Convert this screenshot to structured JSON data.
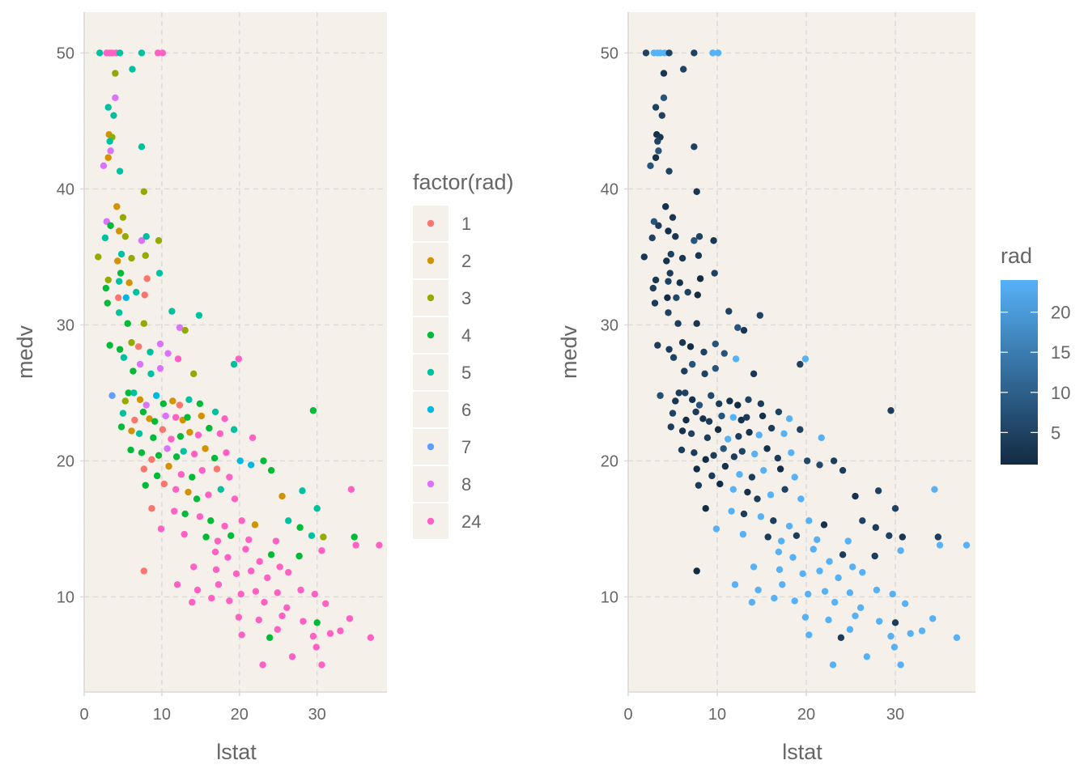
{
  "colors": {
    "panel_background": "#F5F0EA",
    "grid": "#D9D9D9",
    "text": "#666666",
    "gradient_low": "#132B43",
    "gradient_high": "#56B1F7"
  },
  "chart_data": [
    {
      "type": "scatter",
      "title": "",
      "xlabel": "lstat",
      "ylabel": "medv",
      "xlim": [
        0,
        39
      ],
      "ylim": [
        3,
        53
      ],
      "x_ticks": [
        0,
        10,
        20,
        30
      ],
      "x_tick_labels": [
        "0",
        "10",
        "20",
        "30"
      ],
      "y_ticks": [
        10,
        20,
        30,
        40,
        50
      ],
      "y_tick_labels": [
        "10",
        "20",
        "30",
        "40",
        "50"
      ],
      "grid": true,
      "color_by": "factor(rad)",
      "legend": {
        "title": "factor(rad)",
        "position": "right",
        "levels": [
          "1",
          "2",
          "3",
          "4",
          "5",
          "6",
          "7",
          "8",
          "24"
        ],
        "colors": [
          "#F8766D",
          "#D39200",
          "#93AA00",
          "#00BA38",
          "#00C19F",
          "#00B9E3",
          "#619CFF",
          "#DB72FB",
          "#FF61C3"
        ]
      },
      "series_generation_note": "",
      "points": [
        [
          2.9,
          50,
          "24"
        ],
        [
          3.3,
          50,
          "24"
        ],
        [
          3.6,
          50,
          "24"
        ],
        [
          4.1,
          50,
          "24"
        ],
        [
          9.5,
          50,
          "24"
        ],
        [
          10.1,
          50,
          "24"
        ],
        [
          2.0,
          50,
          "5"
        ],
        [
          4.6,
          50,
          "5"
        ],
        [
          7.4,
          50,
          "5"
        ],
        [
          4.0,
          48.5,
          "3"
        ],
        [
          6.2,
          48.8,
          "5"
        ],
        [
          3.1,
          46,
          "5"
        ],
        [
          3.8,
          45.4,
          "5"
        ],
        [
          4.0,
          46.7,
          "8"
        ],
        [
          3.2,
          44,
          "2"
        ],
        [
          3.6,
          43.8,
          "3"
        ],
        [
          3.3,
          43.5,
          "5"
        ],
        [
          3.4,
          42.8,
          "8"
        ],
        [
          3.1,
          42.3,
          "2"
        ],
        [
          2.5,
          41.7,
          "8"
        ],
        [
          4.6,
          41.3,
          "5"
        ],
        [
          7.4,
          43.1,
          "5"
        ],
        [
          7.7,
          39.8,
          "3"
        ],
        [
          4.2,
          38.7,
          "2"
        ],
        [
          2.9,
          37.6,
          "8"
        ],
        [
          3.4,
          37.3,
          "4"
        ],
        [
          5.0,
          37.9,
          "3"
        ],
        [
          4.5,
          36.9,
          "2"
        ],
        [
          5.3,
          36.5,
          "3"
        ],
        [
          7.4,
          36.2,
          "8"
        ],
        [
          8.0,
          36.5,
          "5"
        ],
        [
          9.6,
          36.2,
          "3"
        ],
        [
          2.7,
          36.4,
          "5"
        ],
        [
          1.8,
          35.0,
          "3"
        ],
        [
          4.8,
          35.2,
          "5"
        ],
        [
          6.1,
          34.9,
          "3"
        ],
        [
          7.9,
          35.1,
          "3"
        ],
        [
          4.3,
          34.7,
          "2"
        ],
        [
          4.7,
          33.8,
          "4"
        ],
        [
          3.1,
          33.3,
          "3"
        ],
        [
          4.5,
          33.2,
          "5"
        ],
        [
          5.8,
          33.1,
          "2"
        ],
        [
          8.1,
          33.4,
          "1"
        ],
        [
          6.7,
          32.4,
          "5"
        ],
        [
          9.7,
          33.8,
          "5"
        ],
        [
          2.8,
          32.7,
          "4"
        ],
        [
          4.4,
          32.0,
          "1"
        ],
        [
          5.4,
          32.0,
          "6"
        ],
        [
          7.8,
          32.2,
          "1"
        ],
        [
          3.0,
          31.6,
          "4"
        ],
        [
          4.5,
          30.9,
          "5"
        ],
        [
          5.6,
          30.1,
          "4"
        ],
        [
          7.7,
          30.1,
          "3"
        ],
        [
          11.3,
          31.0,
          "5"
        ],
        [
          14.8,
          30.7,
          "5"
        ],
        [
          13.0,
          29.6,
          "3"
        ],
        [
          12.3,
          29.8,
          "8"
        ],
        [
          3.3,
          28.5,
          "4"
        ],
        [
          4.6,
          28.2,
          "4"
        ],
        [
          6.1,
          28.7,
          "3"
        ],
        [
          7.0,
          28.4,
          "1"
        ],
        [
          8.5,
          28.0,
          "5"
        ],
        [
          9.8,
          28.6,
          "8"
        ],
        [
          5.1,
          27.6,
          "5"
        ],
        [
          7.2,
          27.1,
          "8"
        ],
        [
          10.8,
          27.9,
          "8"
        ],
        [
          19.9,
          27.5,
          "24"
        ],
        [
          19.3,
          27.1,
          "5"
        ],
        [
          6.3,
          26.6,
          "4"
        ],
        [
          8.6,
          26.4,
          "5"
        ],
        [
          9.8,
          26.8,
          "8"
        ],
        [
          12.1,
          27.5,
          "24"
        ],
        [
          14.1,
          26.4,
          "3"
        ],
        [
          3.6,
          24.8,
          "7"
        ],
        [
          5.3,
          24.4,
          "3"
        ],
        [
          5.7,
          25.0,
          "4"
        ],
        [
          6.4,
          25.0,
          "5"
        ],
        [
          7.2,
          24.5,
          "2"
        ],
        [
          8.0,
          24.1,
          "8"
        ],
        [
          9.3,
          24.8,
          "6"
        ],
        [
          10.2,
          24.2,
          "4"
        ],
        [
          11.4,
          24.4,
          "2"
        ],
        [
          12.3,
          24.1,
          "1"
        ],
        [
          13.5,
          24.5,
          "5"
        ],
        [
          14.9,
          24.2,
          "4"
        ],
        [
          5.0,
          23.5,
          "5"
        ],
        [
          6.5,
          23.0,
          "1"
        ],
        [
          7.6,
          23.6,
          "4"
        ],
        [
          8.4,
          23.1,
          "2"
        ],
        [
          9.1,
          22.9,
          "4"
        ],
        [
          10.5,
          23.3,
          "8"
        ],
        [
          11.8,
          23.2,
          "24"
        ],
        [
          12.7,
          23.0,
          "2"
        ],
        [
          13.3,
          23.2,
          "4"
        ],
        [
          15.1,
          23.3,
          "2"
        ],
        [
          16.9,
          23.6,
          "5"
        ],
        [
          18.1,
          23.1,
          "24"
        ],
        [
          29.5,
          23.7,
          "4"
        ],
        [
          4.8,
          22.5,
          "4"
        ],
        [
          6.1,
          22.2,
          "2"
        ],
        [
          7.1,
          22.0,
          "5"
        ],
        [
          8.9,
          21.7,
          "4"
        ],
        [
          10.1,
          22.3,
          "1"
        ],
        [
          11.2,
          21.6,
          "24"
        ],
        [
          12.4,
          21.8,
          "4"
        ],
        [
          13.6,
          22.1,
          "2"
        ],
        [
          14.7,
          21.9,
          "24"
        ],
        [
          16.1,
          22.4,
          "4"
        ],
        [
          17.5,
          22.0,
          "24"
        ],
        [
          19.3,
          22.3,
          "5"
        ],
        [
          21.7,
          21.7,
          "24"
        ],
        [
          6.0,
          20.8,
          "4"
        ],
        [
          7.4,
          20.6,
          "4"
        ],
        [
          8.7,
          20.1,
          "1"
        ],
        [
          9.6,
          20.4,
          "4"
        ],
        [
          10.7,
          20.9,
          "8"
        ],
        [
          11.9,
          20.3,
          "4"
        ],
        [
          12.8,
          20.7,
          "5"
        ],
        [
          14.2,
          20.5,
          "24"
        ],
        [
          15.6,
          20.9,
          "2"
        ],
        [
          16.8,
          20.2,
          "4"
        ],
        [
          18.3,
          20.6,
          "24"
        ],
        [
          20.1,
          20.0,
          "6"
        ],
        [
          23.1,
          20.0,
          "4"
        ],
        [
          7.7,
          19.4,
          "1"
        ],
        [
          9.4,
          18.9,
          "4"
        ],
        [
          10.9,
          19.6,
          "2"
        ],
        [
          12.5,
          19.0,
          "24"
        ],
        [
          13.9,
          18.8,
          "4"
        ],
        [
          15.2,
          19.3,
          "24"
        ],
        [
          17.1,
          19.4,
          "1"
        ],
        [
          18.7,
          18.8,
          "24"
        ],
        [
          21.5,
          19.7,
          "6"
        ],
        [
          24.1,
          19.3,
          "4"
        ],
        [
          7.9,
          18.2,
          "4"
        ],
        [
          10.3,
          18.3,
          "1"
        ],
        [
          11.8,
          17.9,
          "24"
        ],
        [
          13.4,
          17.7,
          "2"
        ],
        [
          14.5,
          17.2,
          "4"
        ],
        [
          16.0,
          17.5,
          "24"
        ],
        [
          17.6,
          17.9,
          "5"
        ],
        [
          19.4,
          17.2,
          "24"
        ],
        [
          25.5,
          17.4,
          "2"
        ],
        [
          28.1,
          17.8,
          "5"
        ],
        [
          34.4,
          17.9,
          "24"
        ],
        [
          8.7,
          16.5,
          "1"
        ],
        [
          11.6,
          16.3,
          "24"
        ],
        [
          13.0,
          16.1,
          "4"
        ],
        [
          14.9,
          15.9,
          "24"
        ],
        [
          16.3,
          15.6,
          "4"
        ],
        [
          18.1,
          15.2,
          "24"
        ],
        [
          20.3,
          15.6,
          "24"
        ],
        [
          22.0,
          15.3,
          "2"
        ],
        [
          26.3,
          15.6,
          "5"
        ],
        [
          27.8,
          15.1,
          "4"
        ],
        [
          30.0,
          16.5,
          "5"
        ],
        [
          9.9,
          15.0,
          "24"
        ],
        [
          12.9,
          14.6,
          "24"
        ],
        [
          15.7,
          14.4,
          "4"
        ],
        [
          17.2,
          14.1,
          "24"
        ],
        [
          18.9,
          14.5,
          "4"
        ],
        [
          21.2,
          14.2,
          "24"
        ],
        [
          24.7,
          14.1,
          "24"
        ],
        [
          29.3,
          14.5,
          "5"
        ],
        [
          30.8,
          14.4,
          "3"
        ],
        [
          34.8,
          14.4,
          "4"
        ],
        [
          35.0,
          13.8,
          "24"
        ],
        [
          38.0,
          13.8,
          "24"
        ],
        [
          16.9,
          13.3,
          "24"
        ],
        [
          18.5,
          12.9,
          "24"
        ],
        [
          20.8,
          13.5,
          "24"
        ],
        [
          22.6,
          12.6,
          "24"
        ],
        [
          24.1,
          13.1,
          "4"
        ],
        [
          25.2,
          12.2,
          "24"
        ],
        [
          27.7,
          13.0,
          "4"
        ],
        [
          30.6,
          13.4,
          "24"
        ],
        [
          14.1,
          12.2,
          "24"
        ],
        [
          17.0,
          12.0,
          "24"
        ],
        [
          19.6,
          11.7,
          "24"
        ],
        [
          21.5,
          11.9,
          "24"
        ],
        [
          23.6,
          11.4,
          "24"
        ],
        [
          26.3,
          11.8,
          "24"
        ],
        [
          7.7,
          11.9,
          "1"
        ],
        [
          12.0,
          10.9,
          "24"
        ],
        [
          14.6,
          10.5,
          "24"
        ],
        [
          17.3,
          10.9,
          "24"
        ],
        [
          20.2,
          10.2,
          "24"
        ],
        [
          22.1,
          10.4,
          "24"
        ],
        [
          24.9,
          10.3,
          "24"
        ],
        [
          27.9,
          10.5,
          "24"
        ],
        [
          29.7,
          10.2,
          "24"
        ],
        [
          13.9,
          9.6,
          "24"
        ],
        [
          16.4,
          9.9,
          "24"
        ],
        [
          18.7,
          9.7,
          "24"
        ],
        [
          23.2,
          9.6,
          "24"
        ],
        [
          26.1,
          9.2,
          "24"
        ],
        [
          31.1,
          9.5,
          "24"
        ],
        [
          19.9,
          8.5,
          "24"
        ],
        [
          22.5,
          8.3,
          "24"
        ],
        [
          25.5,
          8.6,
          "24"
        ],
        [
          28.2,
          8.2,
          "24"
        ],
        [
          30.0,
          8.1,
          "4"
        ],
        [
          34.2,
          8.4,
          "24"
        ],
        [
          24.9,
          7.6,
          "24"
        ],
        [
          29.5,
          7.1,
          "24"
        ],
        [
          31.7,
          7.3,
          "24"
        ],
        [
          33.0,
          7.5,
          "24"
        ],
        [
          36.9,
          7.0,
          "24"
        ],
        [
          20.3,
          7.2,
          "24"
        ],
        [
          23.9,
          7.0,
          "4"
        ],
        [
          29.9,
          6.3,
          "24"
        ],
        [
          26.8,
          5.6,
          "24"
        ],
        [
          23.0,
          5.0,
          "24"
        ],
        [
          30.6,
          5.0,
          "24"
        ]
      ]
    },
    {
      "type": "scatter",
      "title": "",
      "xlabel": "lstat",
      "ylabel": "medv",
      "xlim": [
        0,
        39
      ],
      "ylim": [
        3,
        53
      ],
      "x_ticks": [
        0,
        10,
        20,
        30
      ],
      "x_tick_labels": [
        "0",
        "10",
        "20",
        "30"
      ],
      "y_ticks": [
        10,
        20,
        30,
        40,
        50
      ],
      "y_tick_labels": [
        "10",
        "20",
        "30",
        "40",
        "50"
      ],
      "grid": true,
      "color_by": "rad",
      "legend": {
        "title": "rad",
        "position": "right",
        "type": "colorbar",
        "range": [
          1,
          24
        ],
        "breaks": [
          5,
          10,
          15,
          20
        ],
        "break_labels": [
          "5",
          "10",
          "15",
          "20"
        ]
      },
      "points_source": "same lstat/medv/rad observations as chart_data[0]"
    }
  ]
}
